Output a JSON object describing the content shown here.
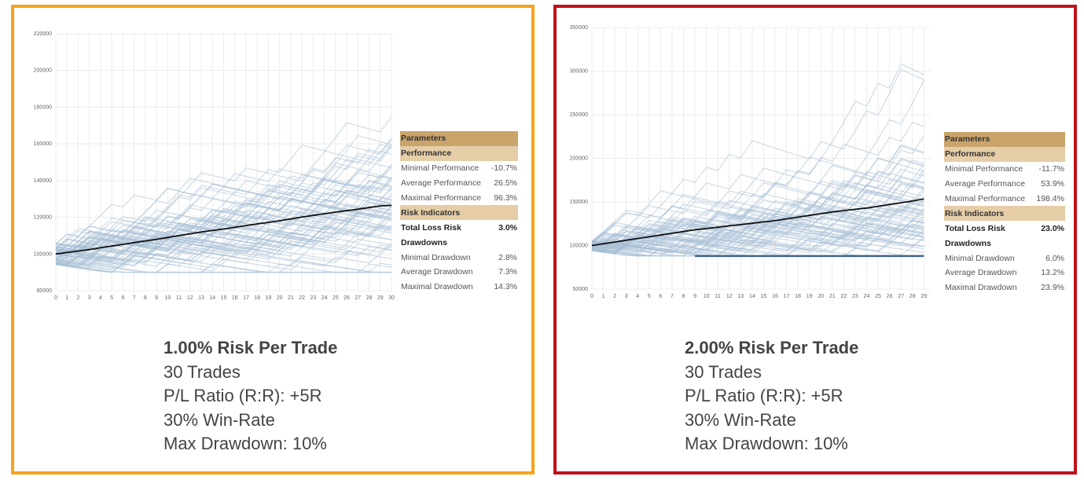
{
  "colors": {
    "left_border": "#f5a31a",
    "right_border": "#c0111a",
    "path_color": "#a8bfd6",
    "mean_color": "#111111"
  },
  "panels": [
    {
      "caption": {
        "title": "1.00% Risk Per Trade",
        "lines": [
          "30 Trades",
          "P/L Ratio (R:R): +5R",
          "30% Win-Rate",
          "Max Drawdown: 10%"
        ]
      },
      "table": {
        "parameters": "Parameters",
        "performance": "Performance",
        "rows_performance": [
          {
            "label": "Minimal Performance",
            "value": "-10.7%"
          },
          {
            "label": "Average Performance",
            "value": "26.5%"
          },
          {
            "label": "Maximal Performance",
            "value": "96.3%"
          }
        ],
        "risk_indicators": "Risk Indicators",
        "total_loss": {
          "label": "Total Loss Risk",
          "value": "3.0%"
        },
        "drawdowns": "Drawdowns",
        "rows_drawdowns": [
          {
            "label": "Minimal Drawdown",
            "value": "2.8%"
          },
          {
            "label": "Average Drawdown",
            "value": "7.3%"
          },
          {
            "label": "Maximal Drawdown",
            "value": "14.3%"
          }
        ]
      }
    },
    {
      "caption": {
        "title": "2.00% Risk Per Trade",
        "lines": [
          "30 Trades",
          "P/L Ratio (R:R): +5R",
          "30% Win-Rate",
          "Max Drawdown: 10%"
        ]
      },
      "table": {
        "parameters": "Parameters",
        "performance": "Performance",
        "rows_performance": [
          {
            "label": "Minimal Performance",
            "value": "-11.7%"
          },
          {
            "label": "Average Performance",
            "value": "53.9%"
          },
          {
            "label": "Maximal Performance",
            "value": "198.4%"
          }
        ],
        "risk_indicators": "Risk Indicators",
        "total_loss": {
          "label": "Total Loss Risk",
          "value": "23.0%"
        },
        "drawdowns": "Drawdowns",
        "rows_drawdowns": [
          {
            "label": "Minimal Drawdown",
            "value": "6.0%"
          },
          {
            "label": "Average Drawdown",
            "value": "13.2%"
          },
          {
            "label": "Maximal Drawdown",
            "value": "23.9%"
          }
        ]
      }
    }
  ],
  "chart_data": [
    {
      "type": "line",
      "x": [
        0,
        1,
        2,
        3,
        4,
        5,
        6,
        7,
        8,
        9,
        10,
        11,
        12,
        13,
        14,
        15,
        16,
        17,
        18,
        19,
        20,
        21,
        22,
        23,
        24,
        25,
        26,
        27,
        28,
        29,
        30
      ],
      "yticks": [
        80000,
        100000,
        120000,
        140000,
        160000,
        180000,
        200000,
        220000
      ],
      "ylim": [
        80000,
        220000
      ],
      "xlim": [
        0,
        30
      ],
      "grid": true,
      "series": [
        {
          "values": [
            100000,
            100800,
            101600,
            102400,
            103400,
            104300,
            105200,
            106200,
            107100,
            108000,
            109000,
            110000,
            111000,
            112000,
            112800,
            113600,
            114500,
            115500,
            116400,
            117200,
            118100,
            119100,
            120100,
            121000,
            121900,
            122800,
            123600,
            124400,
            125300,
            126200,
            126500
          ]
        }
      ]
    },
    {
      "type": "line",
      "x": [
        0,
        1,
        2,
        3,
        4,
        5,
        6,
        7,
        8,
        9,
        10,
        11,
        12,
        13,
        14,
        15,
        16,
        17,
        18,
        19,
        20,
        21,
        22,
        23,
        24,
        25,
        26,
        27,
        28,
        29
      ],
      "yticks": [
        50000,
        100000,
        150000,
        200000,
        250000,
        300000,
        350000
      ],
      "ylim": [
        50000,
        350000
      ],
      "xlim": [
        0,
        29.6
      ],
      "grid": true,
      "series": [
        {
          "values": [
            100000,
            102000,
            104000,
            106000,
            108000,
            110000,
            112000,
            114000,
            116000,
            118000,
            119500,
            121000,
            122500,
            124000,
            125500,
            127000,
            128500,
            130500,
            132500,
            134500,
            136500,
            138500,
            140000,
            141500,
            143000,
            145000,
            147000,
            149000,
            151000,
            153500
          ]
        }
      ]
    }
  ]
}
